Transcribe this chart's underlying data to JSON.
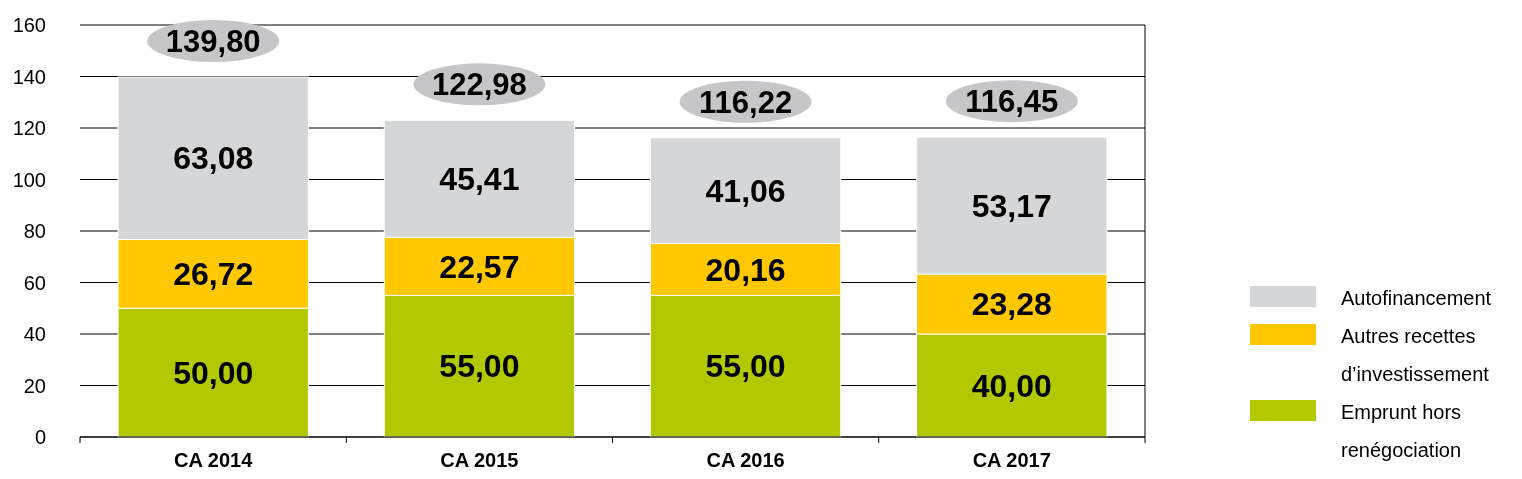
{
  "chart_data": {
    "type": "bar",
    "stacked": true,
    "categories": [
      "CA 2014",
      "CA 2015",
      "CA 2016",
      "CA 2017"
    ],
    "series": [
      {
        "name": "Emprunt hors renégociation",
        "color": "#b2c800",
        "values": [
          50.0,
          55.0,
          55.0,
          40.0
        ],
        "value_labels": [
          "50,00",
          "55,00",
          "55,00",
          "40,00"
        ]
      },
      {
        "name": "Autres recettes d’investissement",
        "color": "#ffc800",
        "values": [
          26.72,
          22.57,
          20.16,
          23.28
        ],
        "value_labels": [
          "26,72",
          "22,57",
          "20,16",
          "23,28"
        ]
      },
      {
        "name": "Autofinancement",
        "color": "#d5d6d8",
        "values": [
          63.08,
          45.41,
          41.06,
          53.17
        ],
        "value_labels": [
          "63,08",
          "45,41",
          "41,06",
          "53,17"
        ]
      }
    ],
    "totals": [
      "139,80",
      "122,98",
      "116,22",
      "116,45"
    ],
    "ylim": [
      0,
      160
    ],
    "yticks": [
      0,
      20,
      40,
      60,
      80,
      100,
      120,
      140,
      160
    ],
    "grid": "y",
    "legend": "right"
  }
}
